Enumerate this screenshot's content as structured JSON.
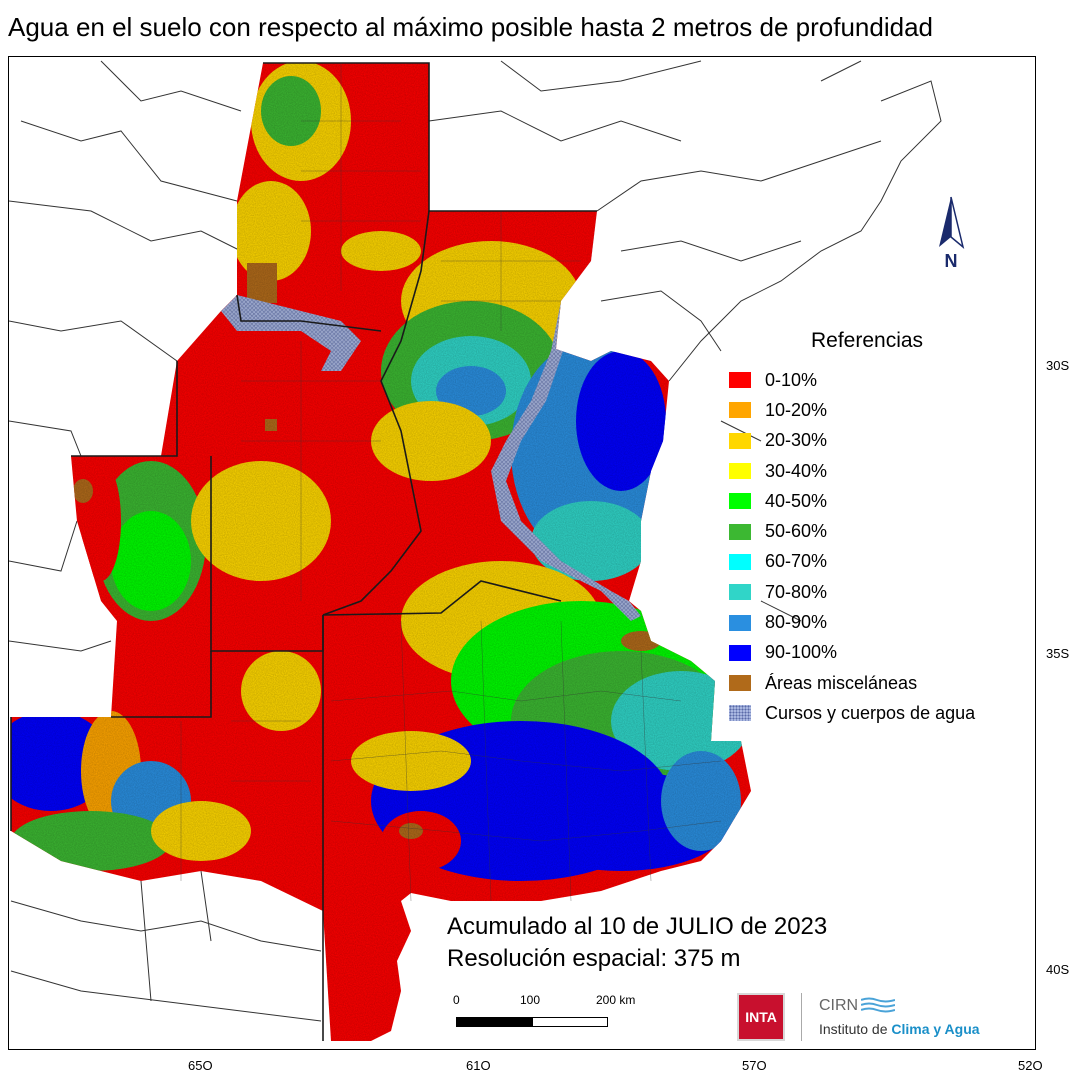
{
  "title": "Agua en el suelo con respecto al máximo posible hasta 2 metros de profundidad",
  "legend": {
    "title": "Referencias",
    "items": [
      {
        "label": "0-10%",
        "color": "#ff0000"
      },
      {
        "label": "10-20%",
        "color": "#ffa500"
      },
      {
        "label": "20-30%",
        "color": "#ffd700"
      },
      {
        "label": "30-40%",
        "color": "#ffff00"
      },
      {
        "label": "40-50%",
        "color": "#00ff00"
      },
      {
        "label": "50-60%",
        "color": "#3cb832"
      },
      {
        "label": "60-70%",
        "color": "#00ffff"
      },
      {
        "label": "70-80%",
        "color": "#30d5c8"
      },
      {
        "label": "80-90%",
        "color": "#2a8fe0"
      },
      {
        "label": "90-100%",
        "color": "#0000ff"
      },
      {
        "label": "Áreas misceláneas",
        "color": "#b06a1a"
      },
      {
        "label": "Cursos y cuerpos de agua",
        "color": "#a8b6e0",
        "pattern": true
      }
    ]
  },
  "info": {
    "line1": "Acumulado al 10 de JULIO de 2023",
    "line2": "Resolución espacial: 375 m"
  },
  "axes": {
    "lon_ticks": [
      "65O",
      "61O",
      "57O",
      "52O"
    ],
    "lat_ticks": [
      "30S",
      "35S",
      "40S"
    ]
  },
  "scale": {
    "labels": [
      "0",
      "100",
      "200 km"
    ]
  },
  "north": "N",
  "logos": {
    "inta": "INTA",
    "cirn": "CIRN",
    "institute_prefix": "Instituto de ",
    "institute_highlight": "Clima y Agua"
  }
}
